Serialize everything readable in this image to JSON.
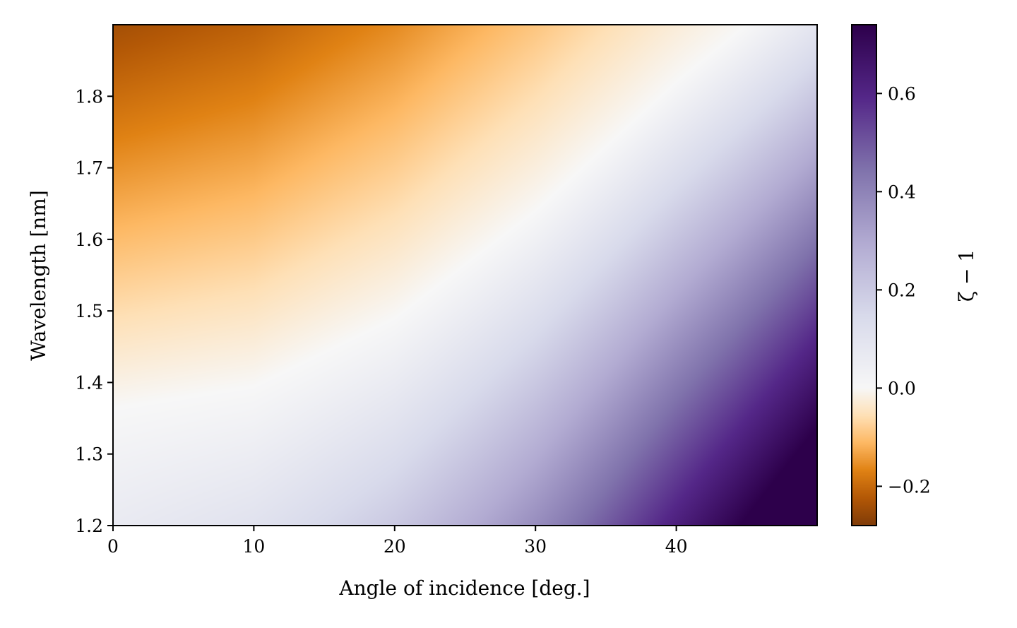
{
  "chart_data": {
    "type": "heatmap",
    "title": "",
    "xlabel": "Angle of incidence [deg.]",
    "ylabel": "Wavelength [nm]",
    "xlim": [
      0,
      50
    ],
    "ylim": [
      1.2,
      1.9
    ],
    "x_ticks": [
      {
        "value": 0,
        "label": "0"
      },
      {
        "value": 10,
        "label": "10"
      },
      {
        "value": 20,
        "label": "20"
      },
      {
        "value": 30,
        "label": "30"
      },
      {
        "value": 40,
        "label": "40"
      }
    ],
    "y_ticks": [
      {
        "value": 1.2,
        "label": "1.2"
      },
      {
        "value": 1.3,
        "label": "1.3"
      },
      {
        "value": 1.4,
        "label": "1.4"
      },
      {
        "value": 1.5,
        "label": "1.5"
      },
      {
        "value": 1.6,
        "label": "1.6"
      },
      {
        "value": 1.7,
        "label": "1.7"
      },
      {
        "value": 1.8,
        "label": "1.8"
      }
    ],
    "colorbar": {
      "label": "ζ − 1",
      "range": [
        -0.28,
        0.74
      ],
      "colormap": "PuOr",
      "colormap_stops": [
        "#7f3b08",
        "#b35806",
        "#e08214",
        "#fdb863",
        "#fee0b6",
        "#f7f7f7",
        "#d8daeb",
        "#b2abd2",
        "#8073ac",
        "#542788",
        "#2d004b"
      ],
      "ticks": [
        {
          "value": -0.2,
          "label": "−0.2"
        },
        {
          "value": 0.0,
          "label": "0.0"
        },
        {
          "value": 0.2,
          "label": "0.2"
        },
        {
          "value": 0.4,
          "label": "0.4"
        },
        {
          "value": 0.6,
          "label": "0.6"
        }
      ]
    },
    "grid": false,
    "zero_contour": [
      [
        0,
        1.365
      ],
      [
        10,
        1.395
      ],
      [
        20,
        1.49
      ],
      [
        30,
        1.64
      ],
      [
        35,
        1.73
      ],
      [
        40,
        1.82
      ],
      [
        45,
        1.9
      ]
    ],
    "sample_values": [
      {
        "x": 0,
        "y": 1.2,
        "z": 0.09
      },
      {
        "x": 0,
        "y": 1.9,
        "z": -0.28
      },
      {
        "x": 10,
        "y": 1.5,
        "z": -0.1
      },
      {
        "x": 25,
        "y": 1.2,
        "z": 0.25
      },
      {
        "x": 50,
        "y": 1.9,
        "z": 0.09
      },
      {
        "x": 50,
        "y": 1.2,
        "z": 0.74
      }
    ]
  }
}
